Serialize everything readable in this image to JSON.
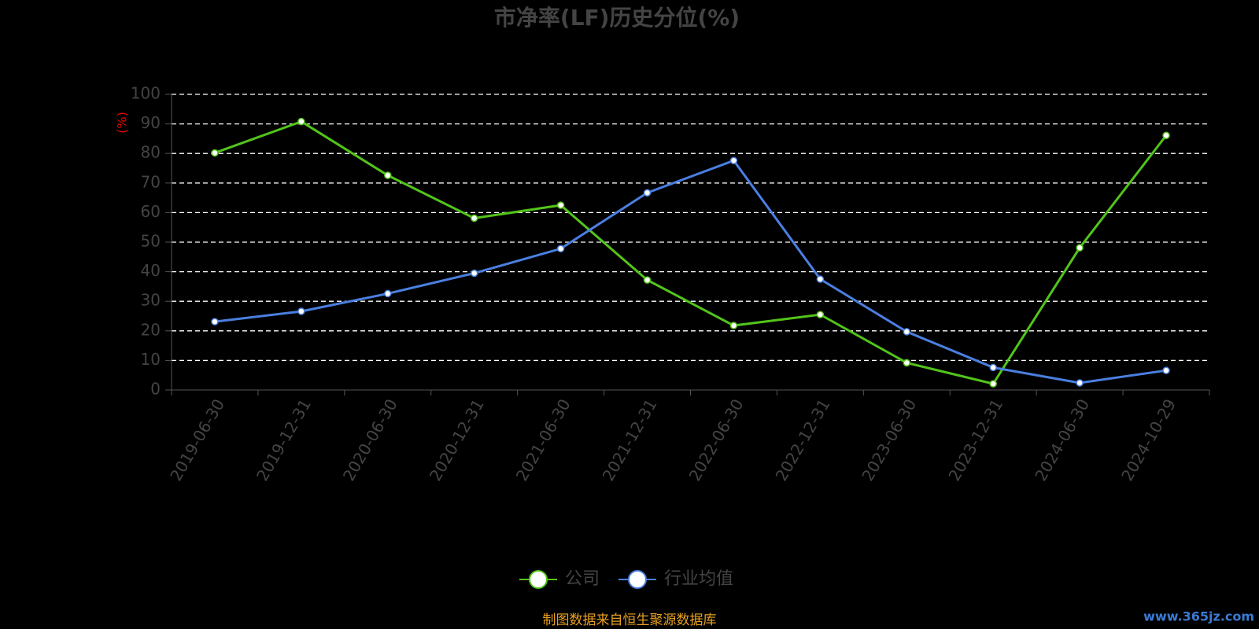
{
  "chart_data": {
    "type": "line",
    "title": "市净率(LF)历史分位(%)",
    "y_label": "(%)",
    "categories": [
      "2019-06-30",
      "2019-12-31",
      "2020-06-30",
      "2020-12-31",
      "2021-06-30",
      "2021-12-31",
      "2022-06-30",
      "2022-12-31",
      "2023-06-30",
      "2023-12-31",
      "2024-06-30",
      "2024-10-29"
    ],
    "series": [
      {
        "name": "公司",
        "color": "#52c41a",
        "values": [
          80.2,
          90.8,
          72.6,
          58.1,
          62.5,
          37.2,
          21.8,
          25.5,
          9.2,
          2.1,
          48.1,
          86.1
        ]
      },
      {
        "name": "行业均值",
        "color": "#4a7fe0",
        "values": [
          23.1,
          26.6,
          32.6,
          39.5,
          47.8,
          66.7,
          77.6,
          37.5,
          19.7,
          7.6,
          2.4,
          6.6
        ]
      }
    ],
    "ylim": [
      0,
      100
    ],
    "yticks": [
      0,
      10,
      20,
      30,
      40,
      50,
      60,
      70,
      80,
      90,
      100
    ],
    "grid": true,
    "legend": "bottom",
    "source": "制图数据来自恒生聚源数据库",
    "watermark": "www.365jz.com"
  }
}
